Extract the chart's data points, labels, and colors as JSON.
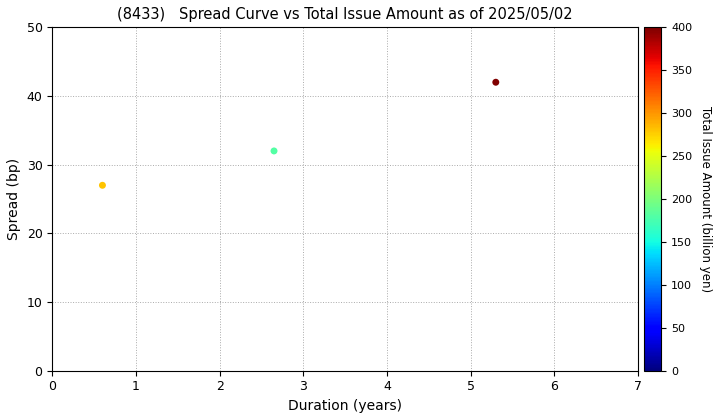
{
  "title": "(8433)   Spread Curve vs Total Issue Amount as of 2025/05/02",
  "xlabel": "Duration (years)",
  "ylabel": "Spread (bp)",
  "colorbar_label": "Total Issue Amount (billion yen)",
  "xlim": [
    0,
    7
  ],
  "ylim": [
    0,
    50
  ],
  "xticks": [
    0,
    1,
    2,
    3,
    4,
    5,
    6,
    7
  ],
  "yticks": [
    0,
    10,
    20,
    30,
    40,
    50
  ],
  "colorbar_min": 0,
  "colorbar_max": 400,
  "colorbar_ticks": [
    0,
    50,
    100,
    150,
    200,
    250,
    300,
    350,
    400
  ],
  "points": [
    {
      "duration": 0.6,
      "spread": 27,
      "total_issue": 280
    },
    {
      "duration": 2.65,
      "spread": 32,
      "total_issue": 180
    },
    {
      "duration": 5.3,
      "spread": 42,
      "total_issue": 400
    }
  ],
  "marker_size": 25,
  "background_color": "#ffffff",
  "grid_color": "#aaaaaa",
  "grid_linestyle": ":"
}
